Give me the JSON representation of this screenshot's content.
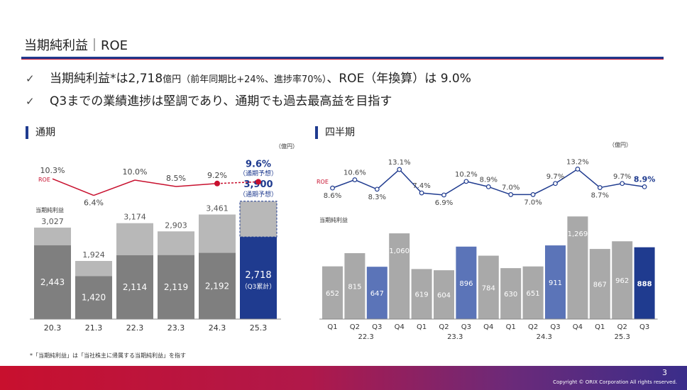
{
  "slide": {
    "title": "当期純利益｜ROE",
    "bullet1_main": "当期純利益*は2,718",
    "bullet1_unit": "億円",
    "bullet1_paren": "（前年同期比+24%、進捗率70%）",
    "bullet1_roe": "、ROE（年換算）は 9.0%",
    "bullet2": "Q3までの業績進捗は堅調であり、通期でも過去最高益を目指す",
    "check": "✓",
    "footnote": "*「当期純利益」は「当社株主に帰属する当期純利益」を指す",
    "page_number": "3",
    "copyright": "Copyright © ORIX Corporation All rights reserved."
  },
  "chart_data": [
    {
      "type": "bar",
      "section_label": "通期",
      "unit": "（億円）",
      "roe_label": "ROE",
      "net_income_label": "当期純利益",
      "categories": [
        "20.3",
        "21.3",
        "22.3",
        "23.3",
        "24.3",
        "25.3"
      ],
      "totals": [
        3027,
        1924,
        3174,
        2903,
        3461,
        3900
      ],
      "totals_labels": [
        "3,027",
        "1,924",
        "3,174",
        "2,903",
        "3,461",
        "3,900"
      ],
      "q3_cumulative": [
        2443,
        1420,
        2114,
        2119,
        2192,
        2718
      ],
      "q3_labels": [
        "2,443",
        "1,420",
        "2,114",
        "2,119",
        "2,192",
        "2,718"
      ],
      "roe": [
        10.3,
        6.4,
        10.0,
        8.5,
        9.2,
        9.6
      ],
      "roe_labels": [
        "10.3%",
        "6.4%",
        "10.0%",
        "8.5%",
        "9.2%",
        "9.6%"
      ],
      "forecast_note": "（通期予想）",
      "q3_note": "（Q3累計）",
      "ylim": [
        0,
        4200
      ],
      "colors": {
        "full_year": "#b8b8b8",
        "q3": "#7f7f7f",
        "current": "#1f3b8f",
        "roe_line": "#c8102e"
      }
    },
    {
      "type": "bar",
      "section_label": "四半期",
      "unit": "（億円）",
      "roe_label": "ROE",
      "net_income_label": "当期純利益",
      "quarters": [
        "Q1",
        "Q2",
        "Q3",
        "Q4",
        "Q1",
        "Q2",
        "Q3",
        "Q4",
        "Q1",
        "Q2",
        "Q3",
        "Q4",
        "Q1",
        "Q2",
        "Q3"
      ],
      "fiscal_years": [
        "22.3",
        "23.3",
        "24.3",
        "25.3"
      ],
      "values": [
        652,
        815,
        647,
        1060,
        619,
        604,
        896,
        784,
        630,
        651,
        911,
        1269,
        867,
        962,
        888
      ],
      "value_labels": [
        "652",
        "815",
        "647",
        "1,060",
        "619",
        "604",
        "896",
        "784",
        "630",
        "651",
        "911",
        "1,269",
        "867",
        "962",
        "888"
      ],
      "roe": [
        8.6,
        10.6,
        8.3,
        13.1,
        7.4,
        6.9,
        10.2,
        8.9,
        7.0,
        7.0,
        9.7,
        13.2,
        8.7,
        9.7,
        8.9
      ],
      "roe_labels": [
        "8.6%",
        "10.6%",
        "8.3%",
        "13.1%",
        "7.4%",
        "6.9%",
        "10.2%",
        "8.9%",
        "7.0%",
        "7.0%",
        "9.7%",
        "13.2%",
        "8.7%",
        "9.7%",
        "8.9%"
      ],
      "ylim": [
        0,
        1350
      ],
      "colors": {
        "bar": "#a9a9a9",
        "q3": "#5b74b8",
        "current": "#1f3b8f",
        "roe_line": "#1f3b8f"
      }
    }
  ]
}
